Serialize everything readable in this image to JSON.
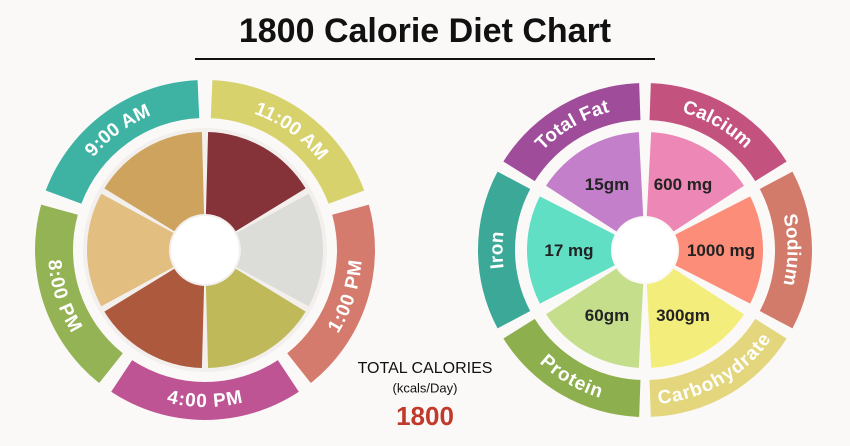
{
  "title": "1800 Calorie Diet Chart",
  "schedule": [
    {
      "label": "9:00 AM",
      "color": "#3fb3a3"
    },
    {
      "label": "11:00 AM",
      "color": "#d8d26c"
    },
    {
      "label": "1:00 PM",
      "color": "#d57b6e"
    },
    {
      "label": "4:00 PM",
      "color": "#bf5495"
    },
    {
      "label": "8:00 PM",
      "color": "#93b354"
    }
  ],
  "nutrients": [
    {
      "name": "Total Fat",
      "amount": "15gm",
      "ring_color": "#9f4d9a",
      "fill_color": "#c47fcb"
    },
    {
      "name": "Calcium",
      "amount": "600 mg",
      "ring_color": "#c3527f",
      "fill_color": "#ed87b5"
    },
    {
      "name": "Sodium",
      "amount": "1000 mg",
      "ring_color": "#d27b6b",
      "fill_color": "#fb8d79"
    },
    {
      "name": "Carbohydrate",
      "amount": "300gm",
      "ring_color": "#e4d67c",
      "fill_color": "#f3ee7c"
    },
    {
      "name": "Protein",
      "amount": "60gm",
      "ring_color": "#8daf4e",
      "fill_color": "#c5de8c"
    },
    {
      "name": "Iron",
      "amount": "17 mg",
      "ring_color": "#3ba898",
      "fill_color": "#60dfc5"
    }
  ],
  "total": {
    "label": "TOTAL CALORIES",
    "unit": "(kcals/Day)",
    "value": "1800"
  }
}
